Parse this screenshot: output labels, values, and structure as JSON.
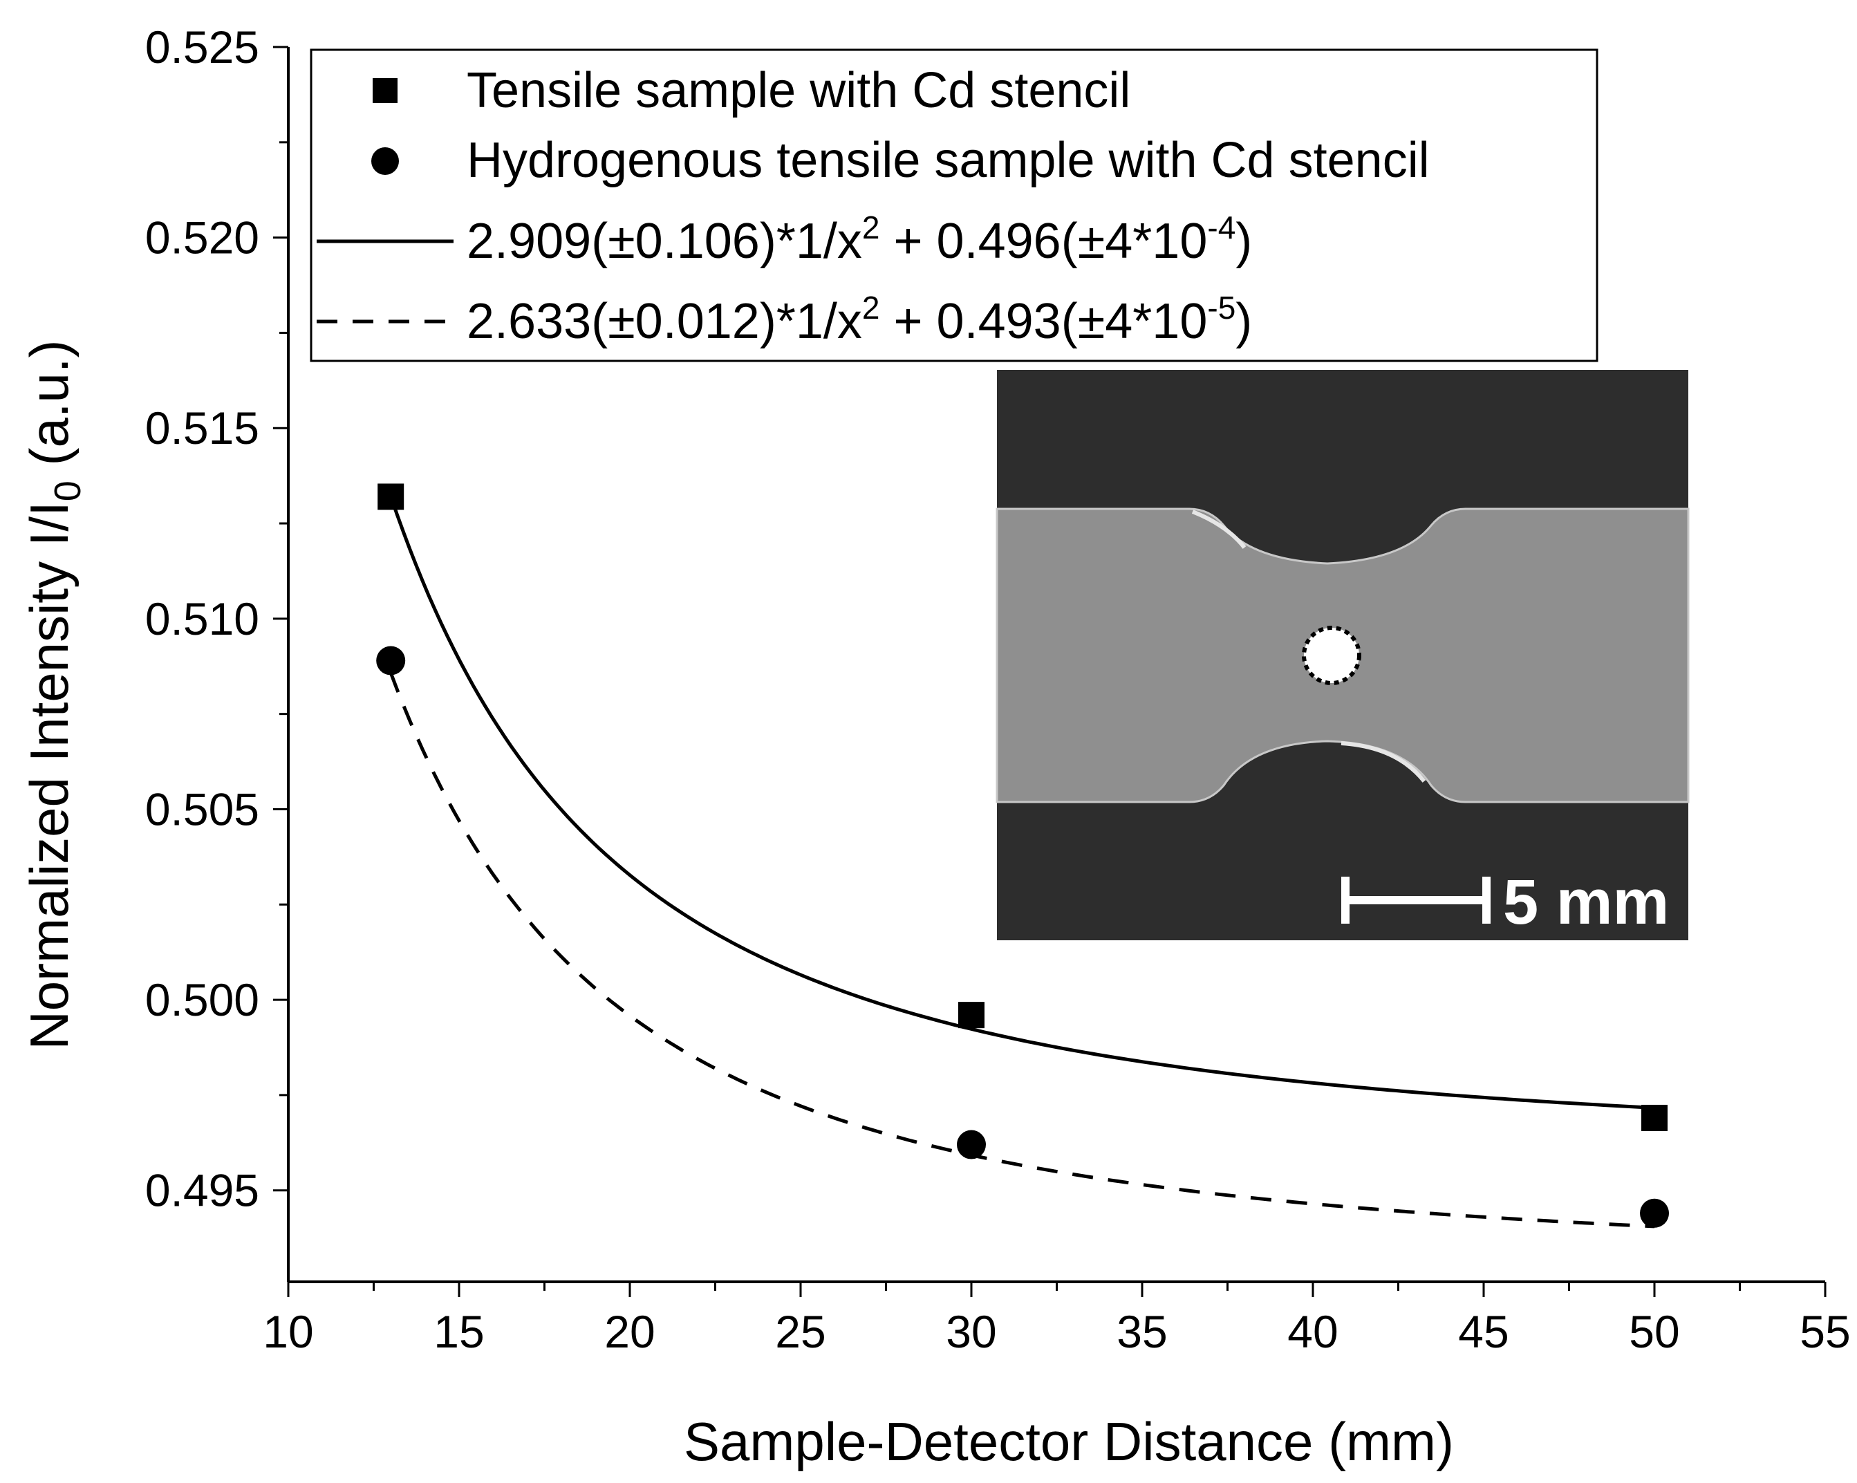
{
  "chart_data": {
    "type": "scatter",
    "xlabel": "Sample-Detector Distance (mm)",
    "ylabel": {
      "prefix": "Normalized Intensity I/I",
      "subscript": "0",
      "suffix": " (a.u.)"
    },
    "xlim": [
      10,
      55
    ],
    "ylim": [
      0.4926,
      0.525
    ],
    "x_ticks": [
      10,
      15,
      20,
      25,
      30,
      35,
      40,
      45,
      50,
      55
    ],
    "x_tick_labels": [
      "10",
      "15",
      "20",
      "25",
      "30",
      "35",
      "40",
      "45",
      "50",
      "55"
    ],
    "y_ticks": [
      0.495,
      0.5,
      0.505,
      0.51,
      0.515,
      0.52,
      0.525
    ],
    "y_tick_labels": [
      "0.495",
      "0.500",
      "0.505",
      "0.510",
      "0.515",
      "0.520",
      "0.525"
    ],
    "grid": false,
    "series": [
      {
        "name": "Tensile sample with Cd stencil",
        "marker": "square",
        "x": [
          13,
          30,
          50
        ],
        "y": [
          0.5132,
          0.4996,
          0.4969
        ]
      },
      {
        "name": "Hydrogenous tensile sample with Cd stencil",
        "marker": "circle",
        "x": [
          13,
          30,
          50
        ],
        "y": [
          0.5089,
          0.4962,
          0.4944
        ]
      }
    ],
    "fits": [
      {
        "style": "solid",
        "a": 2.909,
        "b": 0.496,
        "x_range": [
          13,
          50
        ],
        "label": {
          "a": "2.909(",
          "pm_a": "±",
          "ua": "0.106)*1/x",
          "exp": "2",
          "mid": " + 0.496(",
          "pm_b": "±",
          "ub": "4*10",
          "exp_b": "-4",
          "close": ")"
        }
      },
      {
        "style": "dashed",
        "a": 2.633,
        "b": 0.493,
        "x_range": [
          13,
          50
        ],
        "label": {
          "a": "2.633(",
          "pm_a": "±",
          "ua": "0.012)*1/x",
          "exp": "2",
          "mid": " + 0.493(",
          "pm_b": "±",
          "ub": "4*10",
          "exp_b": "-5",
          "close": ")"
        }
      }
    ],
    "legend_position": "top-left",
    "inset": {
      "description_label": "scale bar",
      "scale_bar_text": "5 mm",
      "background_color": "#2d2d2d",
      "sample_color": "#8f8f8f"
    }
  }
}
